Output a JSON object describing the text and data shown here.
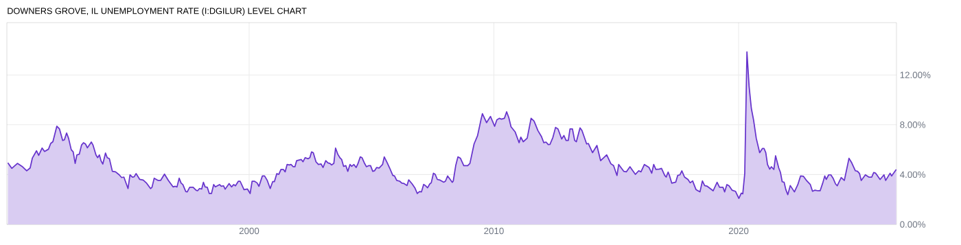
{
  "chart_data": {
    "type": "area",
    "title": "DOWNERS GROVE, IL UNEMPLOYMENT RATE (I:DGILUR) LEVEL CHART",
    "xlim": [
      1990.1,
      2026.45
    ],
    "xticks": [
      2000,
      2010,
      2020
    ],
    "ylim": [
      0,
      16.2
    ],
    "yticks": [
      {
        "value": 0,
        "label": "0.00%"
      },
      {
        "value": 4,
        "label": "4.00%"
      },
      {
        "value": 8,
        "label": "8.00%"
      },
      {
        "value": 12,
        "label": "12.00%"
      }
    ],
    "grid": true,
    "series": [
      {
        "color": "#6633cc",
        "x": [
          1990.14,
          1990.3,
          1990.53,
          1990.72,
          1990.91,
          1991.05,
          1991.14,
          1991.31,
          1991.4,
          1991.54,
          1991.64,
          1991.8,
          1991.89,
          1991.98,
          1992.14,
          1992.25,
          1992.38,
          1992.45,
          1992.54,
          1992.62,
          1992.73,
          1992.81,
          1992.89,
          1992.96,
          1993.06,
          1993.15,
          1993.23,
          1993.31,
          1993.39,
          1993.55,
          1993.62,
          1993.74,
          1993.81,
          1993.88,
          1993.95,
          1994.02,
          1994.13,
          1994.2,
          1994.29,
          1994.41,
          1994.54,
          1994.69,
          1994.79,
          1994.88,
          1995.05,
          1995.13,
          1995.23,
          1995.3,
          1995.38,
          1995.53,
          1995.67,
          1995.81,
          1995.97,
          1996.03,
          1996.12,
          1996.28,
          1996.38,
          1996.54,
          1996.7,
          1996.89,
          1996.98,
          1997.05,
          1997.14,
          1997.22,
          1997.29,
          1997.41,
          1997.47,
          1997.57,
          1997.71,
          1997.83,
          1997.89,
          1997.97,
          1998.06,
          1998.13,
          1998.2,
          1998.29,
          1998.37,
          1998.46,
          1998.55,
          1998.62,
          1998.79,
          1998.86,
          1998.95,
          1999.02,
          1999.18,
          1999.28,
          1999.37,
          1999.44,
          1999.56,
          1999.63,
          1999.79,
          1999.93,
          2000.04,
          2000.12,
          2000.21,
          2000.32,
          2000.4,
          2000.54,
          2000.63,
          2000.74,
          2000.86,
          2000.96,
          2001.03,
          2001.13,
          2001.21,
          2001.3,
          2001.4,
          2001.47,
          2001.55,
          2001.64,
          2001.71,
          2001.8,
          2001.87,
          2001.94,
          2002.13,
          2002.2,
          2002.29,
          2002.41,
          2002.48,
          2002.55,
          2002.62,
          2002.73,
          2002.83,
          2002.94,
          2003.02,
          2003.13,
          2003.22,
          2003.3,
          2003.37,
          2003.46,
          2003.53,
          2003.62,
          2003.72,
          2003.78,
          2003.86,
          2003.95,
          2004.03,
          2004.12,
          2004.19,
          2004.28,
          2004.37,
          2004.44,
          2004.54,
          2004.61,
          2004.7,
          2004.79,
          2004.89,
          2004.96,
          2005.05,
          2005.12,
          2005.21,
          2005.31,
          2005.45,
          2005.52,
          2005.63,
          2005.74,
          2005.87,
          2005.94,
          2006.03,
          2006.15,
          2006.24,
          2006.33,
          2006.45,
          2006.52,
          2006.66,
          2006.77,
          2006.87,
          2006.96,
          2007.04,
          2007.13,
          2007.2,
          2007.29,
          2007.38,
          2007.44,
          2007.53,
          2007.6,
          2007.69,
          2007.8,
          2007.95,
          2008.02,
          2008.11,
          2008.2,
          2008.3,
          2008.34,
          2008.44,
          2008.53,
          2008.63,
          2008.77,
          2008.93,
          2009.02,
          2009.19,
          2009.33,
          2009.42,
          2009.47,
          2009.53,
          2009.7,
          2009.86,
          2010.03,
          2010.12,
          2010.22,
          2010.31,
          2010.43,
          2010.52,
          2010.61,
          2010.7,
          2010.87,
          2011.03,
          2011.1,
          2011.2,
          2011.36,
          2011.52,
          2011.64,
          2011.8,
          2011.94,
          2012.04,
          2012.13,
          2012.22,
          2012.29,
          2012.41,
          2012.52,
          2012.62,
          2012.77,
          2012.86,
          2012.95,
          2013.04,
          2013.11,
          2013.21,
          2013.3,
          2013.37,
          2013.52,
          2013.6,
          2013.79,
          2013.86,
          2014.03,
          2014.21,
          2014.36,
          2014.61,
          2014.78,
          2014.89,
          2015.03,
          2015.1,
          2015.31,
          2015.41,
          2015.56,
          2015.78,
          2015.92,
          2016.01,
          2016.15,
          2016.34,
          2016.45,
          2016.53,
          2016.62,
          2016.76,
          2016.85,
          2016.98,
          2017.04,
          2017.12,
          2017.18,
          2017.27,
          2017.43,
          2017.51,
          2017.6,
          2017.68,
          2017.79,
          2017.93,
          2018.02,
          2018.12,
          2018.26,
          2018.42,
          2018.52,
          2018.61,
          2018.72,
          2018.96,
          2019.12,
          2019.22,
          2019.36,
          2019.43,
          2019.52,
          2019.61,
          2019.73,
          2019.87,
          2020.01,
          2020.11,
          2020.17,
          2020.25,
          2020.34,
          2020.43,
          2020.52,
          2020.61,
          2020.72,
          2020.86,
          2020.97,
          2021.04,
          2021.11,
          2021.18,
          2021.27,
          2021.34,
          2021.44,
          2021.51,
          2021.64,
          2021.71,
          2021.78,
          2021.86,
          2021.93,
          2022.01,
          2022.11,
          2022.28,
          2022.42,
          2022.53,
          2022.65,
          2022.79,
          2022.93,
          2023.02,
          2023.12,
          2023.24,
          2023.33,
          2023.44,
          2023.52,
          2023.58,
          2023.68,
          2023.77,
          2023.86,
          2023.96,
          2024.03,
          2024.19,
          2024.32,
          2024.51,
          2024.61,
          2024.77,
          2024.86,
          2024.94,
          2025.01,
          2025.18,
          2025.32,
          2025.44,
          2025.52,
          2025.6,
          2025.78,
          2025.94,
          2026.01,
          2026.19,
          2026.25,
          2026.44
        ],
        "values": [
          4.94,
          4.5,
          4.9,
          4.66,
          4.3,
          4.53,
          5.32,
          5.91,
          5.54,
          6.13,
          5.86,
          6.04,
          6.5,
          6.64,
          7.88,
          7.66,
          6.74,
          6.79,
          7.34,
          6.92,
          6.0,
          5.82,
          4.9,
          5.58,
          5.64,
          6.37,
          6.56,
          6.46,
          6.15,
          6.61,
          6.37,
          5.58,
          5.36,
          5.58,
          5.09,
          4.85,
          5.73,
          5.36,
          5.27,
          4.26,
          4.22,
          3.98,
          3.76,
          3.8,
          2.88,
          3.98,
          3.8,
          3.82,
          4.08,
          3.61,
          3.56,
          3.31,
          2.88,
          2.98,
          3.71,
          3.53,
          3.53,
          4.04,
          3.53,
          3.01,
          3.06,
          3.01,
          3.71,
          3.31,
          3.2,
          2.64,
          2.61,
          2.98,
          2.98,
          2.75,
          2.7,
          2.88,
          2.84,
          3.38,
          3.01,
          2.98,
          2.48,
          2.48,
          3.2,
          3.01,
          3.2,
          3.06,
          3.1,
          2.83,
          3.28,
          3.01,
          3.2,
          3.1,
          3.47,
          3.47,
          2.79,
          2.84,
          2.48,
          3.47,
          3.47,
          3.34,
          3.06,
          3.89,
          3.89,
          3.53,
          2.88,
          3.43,
          3.43,
          4.08,
          4.02,
          4.41,
          4.41,
          4.22,
          4.81,
          4.77,
          4.81,
          4.63,
          4.63,
          5.12,
          5.21,
          5.03,
          5.36,
          5.27,
          5.36,
          5.82,
          5.76,
          5.03,
          4.81,
          4.85,
          4.57,
          5.12,
          4.94,
          4.9,
          4.77,
          4.9,
          6.13,
          5.64,
          5.32,
          5.21,
          4.66,
          4.72,
          4.26,
          4.81,
          4.66,
          4.81,
          4.57,
          4.85,
          5.42,
          5.36,
          4.96,
          4.63,
          4.72,
          4.72,
          4.26,
          4.3,
          4.57,
          4.53,
          4.81,
          5.42,
          4.99,
          4.53,
          3.93,
          3.89,
          3.53,
          3.47,
          3.31,
          3.28,
          3.12,
          3.58,
          3.25,
          2.94,
          2.48,
          2.64,
          2.61,
          3.21,
          3.12,
          2.94,
          3.25,
          3.34,
          4.11,
          4.02,
          3.61,
          3.56,
          3.39,
          3.47,
          3.89,
          3.65,
          3.38,
          3.49,
          4.72,
          5.42,
          5.32,
          4.72,
          4.72,
          4.9,
          6.46,
          7.11,
          7.93,
          8.39,
          8.89,
          8.17,
          8.67,
          7.88,
          8.39,
          8.52,
          8.45,
          8.52,
          9.04,
          8.57,
          7.84,
          7.42,
          6.56,
          7.01,
          6.64,
          6.92,
          8.52,
          8.3,
          7.53,
          7.07,
          6.56,
          6.61,
          6.41,
          6.42,
          6.98,
          7.79,
          7.66,
          6.86,
          7.14,
          6.74,
          6.74,
          7.66,
          7.66,
          6.74,
          6.64,
          7.75,
          7.53,
          6.46,
          6.5,
          5.76,
          6.34,
          5.12,
          5.58,
          4.87,
          4.72,
          3.93,
          4.81,
          4.26,
          4.22,
          4.63,
          4.02,
          4.31,
          4.22,
          4.81,
          4.57,
          4.11,
          4.81,
          4.41,
          4.44,
          4.5,
          3.93,
          3.8,
          4.2,
          3.89,
          3.31,
          3.39,
          3.93,
          3.98,
          4.3,
          3.8,
          3.61,
          3.34,
          3.49,
          2.79,
          2.61,
          3.49,
          3.12,
          3.06,
          2.7,
          3.38,
          2.98,
          2.98,
          2.61,
          3.2,
          3.1,
          2.75,
          2.66,
          2.09,
          2.51,
          2.46,
          4.08,
          13.85,
          11.05,
          9.31,
          8.39,
          6.92,
          5.76,
          6.09,
          6.09,
          5.76,
          4.81,
          4.44,
          4.63,
          4.41,
          5.51,
          4.53,
          4.17,
          3.43,
          3.38,
          2.79,
          2.39,
          3.12,
          2.61,
          3.2,
          3.89,
          3.86,
          3.49,
          3.2,
          2.66,
          2.75,
          2.7,
          2.7,
          3.34,
          3.89,
          3.61,
          3.98,
          3.98,
          3.71,
          3.25,
          3.1,
          3.76,
          3.53,
          5.31,
          4.99,
          4.31,
          4.26,
          4.08,
          3.53,
          3.98,
          3.8,
          3.8,
          4.17,
          4.11,
          3.61,
          3.98,
          3.53,
          4.11,
          3.89,
          4.41
        ]
      }
    ]
  }
}
